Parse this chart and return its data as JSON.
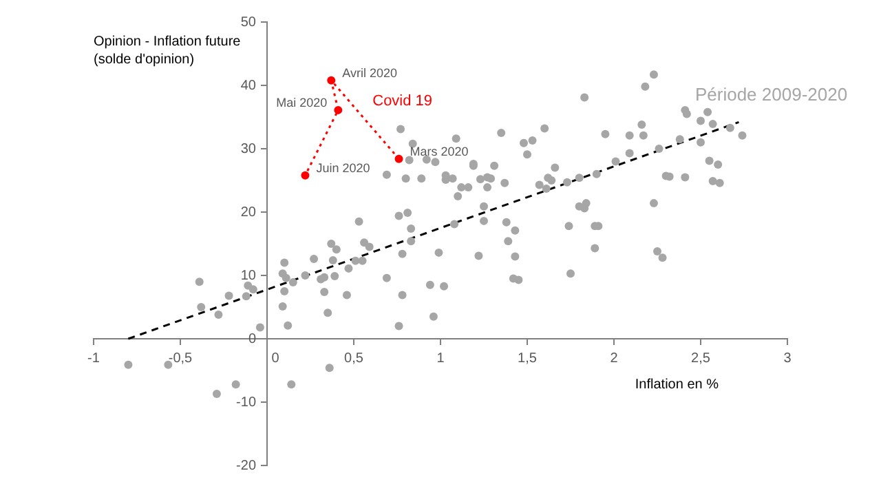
{
  "chart_data": {
    "type": "scatter",
    "xlabel": "Inflation en %",
    "ylabel": "Opinion - Inflation future (solde d'opinion)",
    "xlim": [
      -1,
      3
    ],
    "xticks": [
      -1,
      {
        "value": -0.5,
        "label": "-0,5"
      },
      0,
      {
        "value": 0.5,
        "label": "0,5"
      },
      1,
      {
        "value": 1.5,
        "label": "1,5"
      },
      2,
      {
        "value": 2.5,
        "label": "2,5"
      },
      3
    ],
    "ylim": [
      -20,
      50
    ],
    "yticks": [
      -20,
      -10,
      0,
      10,
      20,
      30,
      40,
      50
    ],
    "grid": false,
    "legend": false,
    "series": [
      {
        "name": "Période 2009-2020",
        "marker": "circle",
        "color": "#a6a6a6",
        "x": [
          -0.8,
          -0.57,
          -0.39,
          -0.38,
          -0.28,
          -0.29,
          -0.22,
          -0.18,
          -0.11,
          -0.08,
          -0.12,
          -0.04,
          0.1,
          0.09,
          0.11,
          0.1,
          0.09,
          0.12,
          0.14,
          0.15,
          0.22,
          0.27,
          0.31,
          0.33,
          0.33,
          0.35,
          0.36,
          0.37,
          0.38,
          0.39,
          0.4,
          0.46,
          0.47,
          0.51,
          0.55,
          0.53,
          0.56,
          0.59,
          0.69,
          0.69,
          0.76,
          0.76,
          0.77,
          0.78,
          0.78,
          0.8,
          0.81,
          0.82,
          0.83,
          0.83,
          0.84,
          0.89,
          0.92,
          0.94,
          0.96,
          0.97,
          0.99,
          1.02,
          1.03,
          1.03,
          1.07,
          1.08,
          1.09,
          1.1,
          1.12,
          1.16,
          1.19,
          1.19,
          1.22,
          1.23,
          1.25,
          1.25,
          1.27,
          1.27,
          1.29,
          1.31,
          1.35,
          1.37,
          1.38,
          1.39,
          1.42,
          1.43,
          1.43,
          1.45,
          1.48,
          1.5,
          1.53,
          1.57,
          1.6,
          1.61,
          1.62,
          1.64,
          1.66,
          1.74,
          1.75,
          1.73,
          1.8,
          1.8,
          1.83,
          1.83,
          1.84,
          1.89,
          1.89,
          1.91,
          1.9,
          1.95,
          2.01,
          2.09,
          2.09,
          2.16,
          2.17,
          2.18,
          2.23,
          2.23,
          2.25,
          2.26,
          2.28,
          2.3,
          2.32,
          2.38,
          2.41,
          2.42,
          2.41,
          2.5,
          2.5,
          2.54,
          2.55,
          2.57,
          2.57,
          2.6,
          2.61,
          2.67,
          2.74
        ],
        "values": [
          -4.1,
          -4.1,
          9.0,
          5.0,
          3.8,
          -8.7,
          6.8,
          -7.2,
          8.4,
          7.8,
          6.7,
          1.8,
          12.0,
          10.3,
          9.6,
          7.5,
          5.1,
          2.1,
          -7.2,
          8.9,
          10.0,
          12.6,
          9.4,
          9.7,
          7.4,
          4.1,
          -4.6,
          15.0,
          12.4,
          9.9,
          14.1,
          6.9,
          11.1,
          12.3,
          12.3,
          18.5,
          15.2,
          14.5,
          25.9,
          9.6,
          19.4,
          2.0,
          33.1,
          13.4,
          6.9,
          25.3,
          19.9,
          28.2,
          17.4,
          15.4,
          30.8,
          25.3,
          28.3,
          8.5,
          3.5,
          27.9,
          13.6,
          8.3,
          25.8,
          25.1,
          25.3,
          18.1,
          31.6,
          22.5,
          23.9,
          23.9,
          27.6,
          27.3,
          13.1,
          25.2,
          20.9,
          18.6,
          23.9,
          25.5,
          25.3,
          27.3,
          32.5,
          24.6,
          18.4,
          15.4,
          9.5,
          17.1,
          13.0,
          9.3,
          30.9,
          29.1,
          31.3,
          24.3,
          33.2,
          23.7,
          25.4,
          25.0,
          27.0,
          17.8,
          10.3,
          24.7,
          25.4,
          20.9,
          38.1,
          20.6,
          21.4,
          14.3,
          17.8,
          17.8,
          26.0,
          32.3,
          28.0,
          32.1,
          29.3,
          33.8,
          32.1,
          39.8,
          41.7,
          21.4,
          13.8,
          30.0,
          12.8,
          25.7,
          25.6,
          31.5,
          36.1,
          35.5,
          25.5,
          34.4,
          31.0,
          35.8,
          28.1,
          24.9,
          33.9,
          27.5,
          24.6,
          33.3,
          32.1
        ]
      },
      {
        "type": "line",
        "marker": "none",
        "line_style": "dashed",
        "color": "#000000",
        "x": [
          -0.8,
          2.72
        ],
        "values": [
          0,
          34.2
        ]
      },
      {
        "name": "Covid 19",
        "type": "line",
        "marker": "circle",
        "line_style": "dotted",
        "color": "#ff0000",
        "x": [
          0.76,
          0.37,
          0.41,
          0.22
        ],
        "values": [
          28.4,
          40.8,
          36.1,
          25.8
        ]
      }
    ],
    "annotations": [
      {
        "text": "Avril 2020",
        "x": 0.37,
        "y": 40.8
      },
      {
        "text": "Mai 2020",
        "x": 0.41,
        "y": 36.1
      },
      {
        "text": "Mars 2020",
        "x": 0.76,
        "y": 28.4
      },
      {
        "text": "Juin 2020",
        "x": 0.22,
        "y": 25.8
      }
    ]
  }
}
